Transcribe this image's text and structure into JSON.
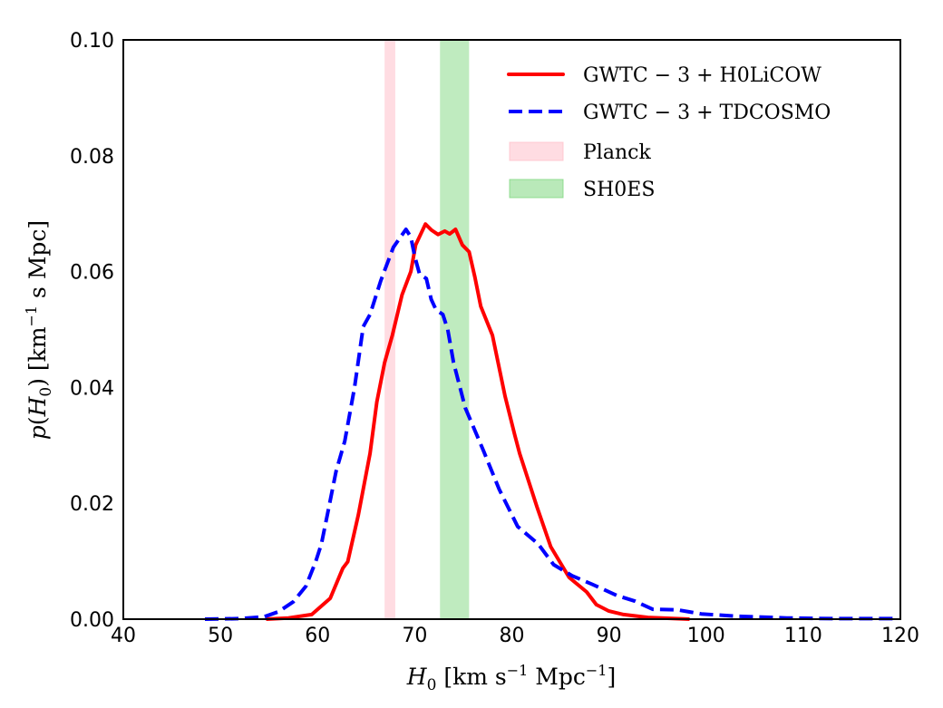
{
  "chart_data": {
    "type": "line",
    "title": "",
    "xlabel": "H₀ [km s⁻¹ Mpc⁻¹]",
    "ylabel": "p(H₀) [km⁻¹ s Mpc]",
    "xlim": [
      40,
      120
    ],
    "ylim": [
      0.0,
      0.1
    ],
    "grid": false,
    "legend_position": "top-right",
    "xticks": [
      "40",
      "50",
      "60",
      "70",
      "80",
      "90",
      "100",
      "110",
      "120"
    ],
    "xtick_values": [
      40,
      50,
      60,
      70,
      80,
      90,
      100,
      110,
      120
    ],
    "yticks": [
      "0.00",
      "0.02",
      "0.04",
      "0.06",
      "0.08",
      "0.10"
    ],
    "ytick_values": [
      0.0,
      0.02,
      0.04,
      0.06,
      0.08,
      0.1
    ],
    "series": [
      {
        "name": "GWTC − 3 + H0LiCOW",
        "color": "#ff0000",
        "style": "solid",
        "x": [
          54.7,
          57.0,
          59.4,
          61.3,
          62.6,
          63.1,
          64.2,
          65.4,
          66.1,
          66.9,
          67.7,
          68.7,
          69.6,
          70.1,
          71.1,
          71.7,
          72.4,
          73.1,
          73.6,
          74.2,
          74.9,
          75.6,
          76.2,
          76.8,
          78.0,
          79.3,
          80.3,
          80.8,
          82.6,
          84.0,
          85.9,
          87.7,
          88.7,
          90.0,
          91.5,
          94.0,
          98.3
        ],
        "y": [
          0.0,
          0.0002,
          0.0008,
          0.0036,
          0.0088,
          0.0099,
          0.018,
          0.0286,
          0.0375,
          0.0443,
          0.049,
          0.056,
          0.06,
          0.0646,
          0.0682,
          0.0672,
          0.0664,
          0.067,
          0.0665,
          0.0673,
          0.0646,
          0.0634,
          0.059,
          0.054,
          0.049,
          0.0385,
          0.0318,
          0.0286,
          0.0193,
          0.0125,
          0.0072,
          0.0047,
          0.0025,
          0.0014,
          0.0008,
          0.0003,
          0.0
        ]
      },
      {
        "name": "GWTC − 3 + TDCOSMO",
        "color": "#0000ff",
        "style": "dashed",
        "x": [
          48.4,
          52.0,
          54.5,
          56.0,
          57.5,
          58.8,
          59.8,
          60.4,
          61.0,
          61.9,
          62.8,
          63.8,
          64.7,
          65.4,
          66.5,
          67.8,
          69.1,
          69.6,
          70.0,
          70.5,
          71.2,
          71.7,
          72.2,
          72.9,
          73.4,
          74.0,
          75.2,
          77.1,
          78.7,
          80.6,
          82.7,
          84.3,
          86.2,
          88.3,
          90.8,
          92.7,
          94.5,
          97.1,
          99.5,
          103.2,
          108.3,
          113.0,
          119.5
        ],
        "y": [
          0.0,
          0.0001,
          0.0004,
          0.0013,
          0.003,
          0.0057,
          0.0099,
          0.013,
          0.018,
          0.0255,
          0.0307,
          0.04,
          0.0505,
          0.0526,
          0.0584,
          0.0642,
          0.0673,
          0.066,
          0.0626,
          0.0596,
          0.0588,
          0.0552,
          0.0534,
          0.0526,
          0.05,
          0.0443,
          0.0365,
          0.029,
          0.0224,
          0.016,
          0.013,
          0.0094,
          0.0075,
          0.006,
          0.0041,
          0.0031,
          0.0017,
          0.0016,
          0.0009,
          0.0005,
          0.0002,
          0.0001,
          0.0001
        ]
      }
    ],
    "bands": [
      {
        "name": "Planck",
        "x_range": [
          66.9,
          68.0
        ],
        "color": "#ffc0cb",
        "opacity": 0.55
      },
      {
        "name": "SH0ES",
        "x_range": [
          72.6,
          75.6
        ],
        "color": "#7fd77f",
        "opacity": 0.5
      }
    ],
    "legend": [
      {
        "label": "GWTC − 3 + H0LiCOW",
        "kind": "line",
        "color": "#ff0000",
        "style": "solid"
      },
      {
        "label": "GWTC − 3 + TDCOSMO",
        "kind": "line",
        "color": "#0000ff",
        "style": "dashed"
      },
      {
        "label": "Planck",
        "kind": "patch",
        "color": "#ffc0cb"
      },
      {
        "label": "SH0ES",
        "kind": "patch",
        "color": "#7fd77f"
      }
    ]
  }
}
